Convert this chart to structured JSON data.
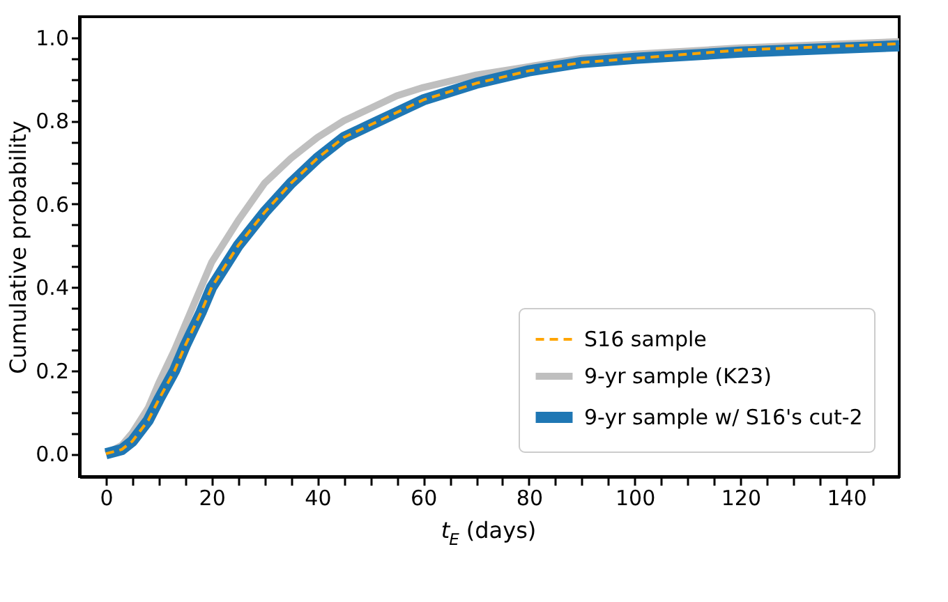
{
  "chart_data": {
    "type": "line",
    "xlabel": "t$_{E}$ (days)",
    "ylabel": "Cumulative probability",
    "xlim": [
      -5,
      150
    ],
    "ylim": [
      -0.055,
      1.05
    ],
    "xticks": [
      0,
      {
        "value": 5,
        "label": null
      },
      {
        "value": 10,
        "label": null
      },
      {
        "value": 15,
        "label": null
      },
      20,
      {
        "value": 25,
        "label": null
      },
      {
        "value": 30,
        "label": null
      },
      {
        "value": 35,
        "label": null
      },
      40,
      {
        "value": 45,
        "label": null
      },
      {
        "value": 50,
        "label": null
      },
      {
        "value": 55,
        "label": null
      },
      60,
      {
        "value": 65,
        "label": null
      },
      {
        "value": 70,
        "label": null
      },
      {
        "value": 75,
        "label": null
      },
      80,
      {
        "value": 85,
        "label": null
      },
      {
        "value": 90,
        "label": null
      },
      {
        "value": 95,
        "label": null
      },
      100,
      {
        "value": 105,
        "label": null
      },
      {
        "value": 110,
        "label": null
      },
      {
        "value": 115,
        "label": null
      },
      120,
      {
        "value": 125,
        "label": null
      },
      {
        "value": 130,
        "label": null
      },
      {
        "value": 135,
        "label": null
      },
      140,
      {
        "value": 145,
        "label": null
      }
    ],
    "yticks": [
      {
        "value": 0,
        "label": "0.0"
      },
      {
        "value": 0.05,
        "label": null
      },
      {
        "value": 0.1,
        "label": null
      },
      {
        "value": 0.15,
        "label": null
      },
      0.2,
      {
        "value": 0.25,
        "label": null
      },
      {
        "value": 0.3,
        "label": null
      },
      {
        "value": 0.35,
        "label": null
      },
      0.4,
      {
        "value": 0.45,
        "label": null
      },
      {
        "value": 0.5,
        "label": null
      },
      {
        "value": 0.55,
        "label": null
      },
      0.6,
      {
        "value": 0.65,
        "label": null
      },
      {
        "value": 0.7,
        "label": null
      },
      {
        "value": 0.75,
        "label": null
      },
      0.8,
      {
        "value": 0.85,
        "label": null
      },
      {
        "value": 0.9,
        "label": null
      },
      {
        "value": 0.95,
        "label": null
      },
      {
        "value": 1,
        "label": "1.0"
      }
    ],
    "grid": false,
    "legend": "bottom right",
    "marker": "none",
    "x": [
      0,
      3,
      5,
      8,
      10,
      13,
      15,
      18,
      20,
      23,
      25,
      30,
      35,
      40,
      45,
      50,
      55,
      60,
      70,
      80,
      90,
      100,
      120,
      140,
      150
    ],
    "series": [
      {
        "name": "S16 sample",
        "color": "#ffa500",
        "line_style": "dashed",
        "values": [
          0,
          0.01,
          0.03,
          0.08,
          0.13,
          0.2,
          0.26,
          0.34,
          0.4,
          0.46,
          0.5,
          0.58,
          0.65,
          0.71,
          0.76,
          0.79,
          0.82,
          0.85,
          0.89,
          0.92,
          0.94,
          0.95,
          0.97,
          0.98,
          0.985
        ]
      },
      {
        "name": "9-yr sample (K23)",
        "color": "#bfbfbf",
        "line_style": "solid",
        "values": [
          0,
          0.02,
          0.05,
          0.11,
          0.17,
          0.25,
          0.31,
          0.4,
          0.46,
          0.52,
          0.56,
          0.65,
          0.71,
          0.76,
          0.8,
          0.83,
          0.86,
          0.88,
          0.91,
          0.93,
          0.95,
          0.96,
          0.975,
          0.985,
          0.99
        ]
      },
      {
        "name": "9-yr sample w/ S16's cut-2",
        "color": "#1f77b4",
        "line_style": "solid",
        "values": [
          0,
          0.01,
          0.03,
          0.08,
          0.13,
          0.2,
          0.26,
          0.34,
          0.4,
          0.46,
          0.5,
          0.58,
          0.65,
          0.71,
          0.76,
          0.79,
          0.82,
          0.85,
          0.89,
          0.92,
          0.94,
          0.95,
          0.965,
          0.975,
          0.98
        ]
      }
    ]
  }
}
